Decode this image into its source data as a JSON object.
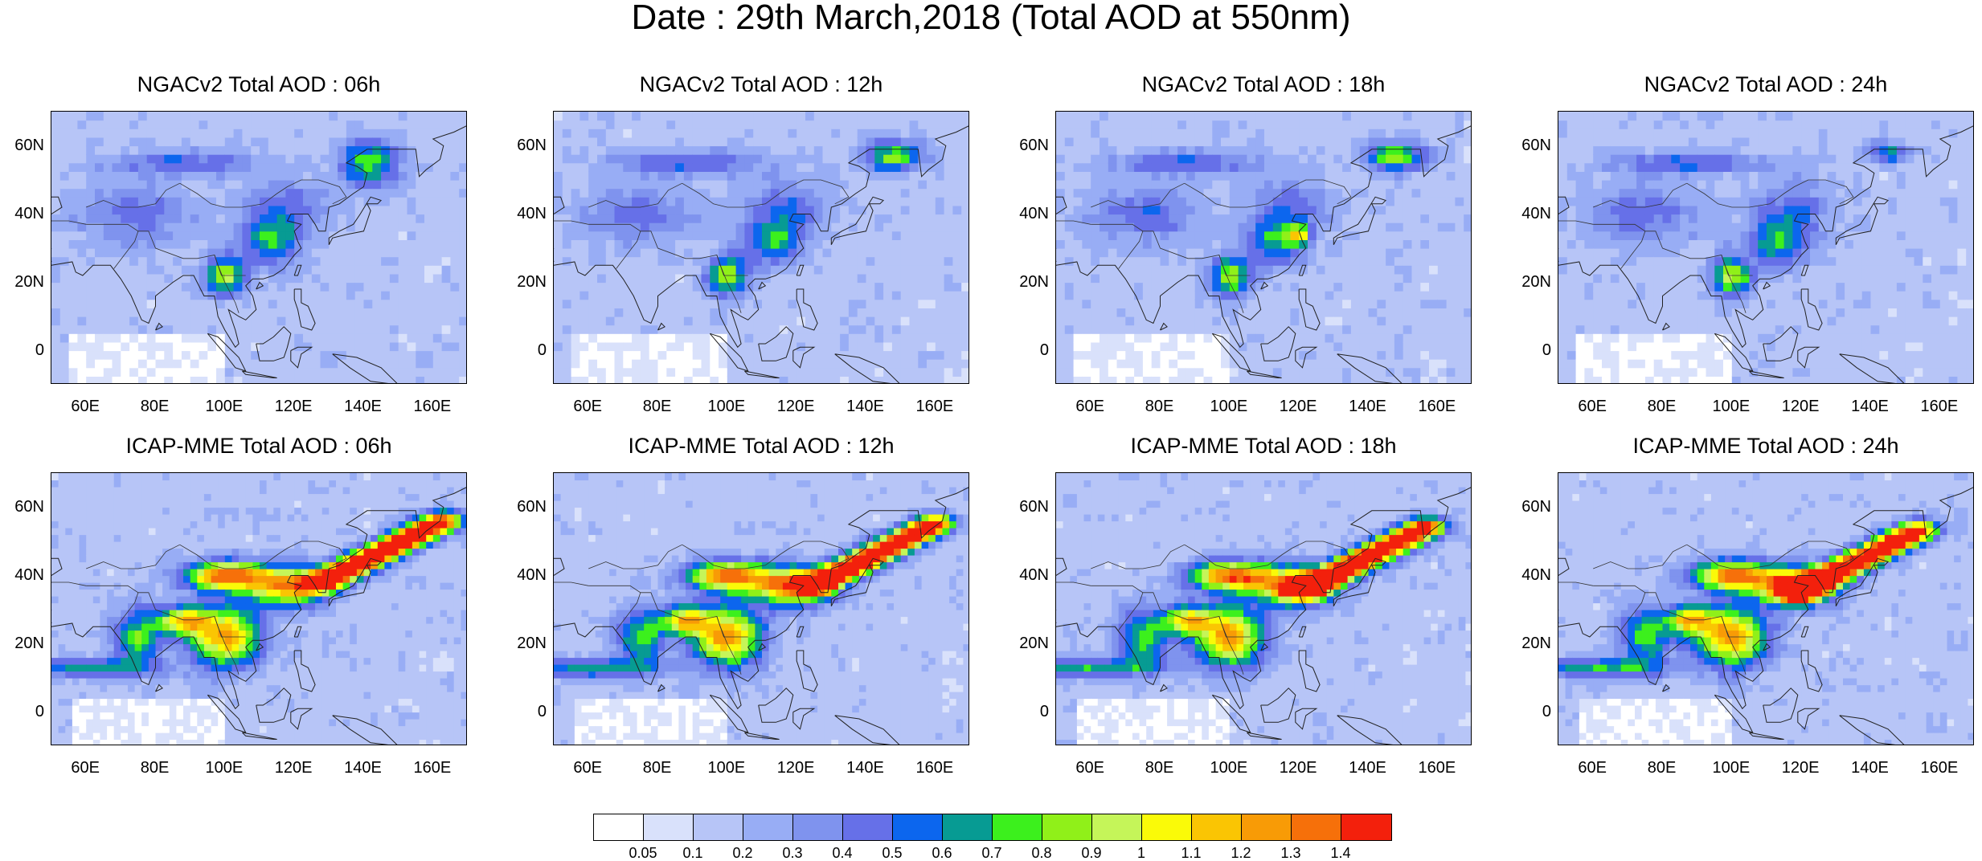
{
  "title": "Date : 29th March,2018 (Total AOD at 550nm)",
  "y_ticks": [
    "60N",
    "40N",
    "20N",
    "0"
  ],
  "x_ticks": [
    "60E",
    "80E",
    "100E",
    "120E",
    "140E",
    "160E"
  ],
  "panels": [
    {
      "title": "NGACv2 Total AOD : 06h",
      "model": "NGACv2",
      "hour": "06h"
    },
    {
      "title": "NGACv2 Total AOD : 12h",
      "model": "NGACv2",
      "hour": "12h"
    },
    {
      "title": "NGACv2 Total AOD : 18h",
      "model": "NGACv2",
      "hour": "18h"
    },
    {
      "title": "NGACv2 Total AOD : 24h",
      "model": "NGACv2",
      "hour": "24h"
    },
    {
      "title": "ICAP-MME Total AOD : 06h",
      "model": "ICAP-MME",
      "hour": "06h"
    },
    {
      "title": "ICAP-MME Total AOD : 12h",
      "model": "ICAP-MME",
      "hour": "12h"
    },
    {
      "title": "ICAP-MME Total AOD : 18h",
      "model": "ICAP-MME",
      "hour": "18h"
    },
    {
      "title": "ICAP-MME Total AOD : 24h",
      "model": "ICAP-MME",
      "hour": "24h"
    }
  ],
  "colorbar": {
    "labels": [
      "0.05",
      "0.1",
      "0.2",
      "0.3",
      "0.4",
      "0.5",
      "0.6",
      "0.7",
      "0.8",
      "0.9",
      "1",
      "1.1",
      "1.2",
      "1.3",
      "1.4"
    ],
    "colors": [
      "#ffffff",
      "#d9e1fb",
      "#b7c5f7",
      "#98adf5",
      "#7f93ee",
      "#6670e8",
      "#0c66ee",
      "#079b93",
      "#3cf01d",
      "#90f019",
      "#c5f559",
      "#fafa08",
      "#fac503",
      "#f89b06",
      "#f6700a",
      "#f3200c"
    ]
  },
  "map_extent": {
    "lon": [
      50,
      170
    ],
    "lat": [
      -10,
      70
    ]
  }
}
